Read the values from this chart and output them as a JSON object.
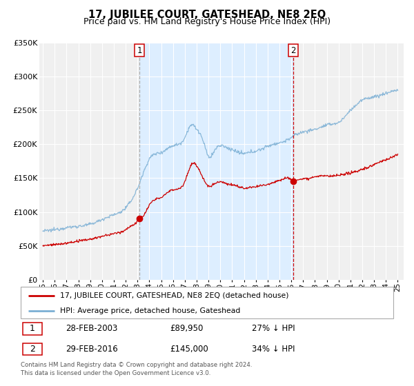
{
  "title": "17, JUBILEE COURT, GATESHEAD, NE8 2EQ",
  "subtitle": "Price paid vs. HM Land Registry's House Price Index (HPI)",
  "ylim": [
    0,
    350000
  ],
  "yticks": [
    0,
    50000,
    100000,
    150000,
    200000,
    250000,
    300000,
    350000
  ],
  "ytick_labels": [
    "£0",
    "£50K",
    "£100K",
    "£150K",
    "£200K",
    "£250K",
    "£300K",
    "£350K"
  ],
  "xlim_start": 1994.7,
  "xlim_end": 2025.5,
  "xtick_years": [
    1995,
    1996,
    1997,
    1998,
    1999,
    2000,
    2001,
    2002,
    2003,
    2004,
    2005,
    2006,
    2007,
    2008,
    2009,
    2010,
    2011,
    2012,
    2013,
    2014,
    2015,
    2016,
    2017,
    2018,
    2019,
    2020,
    2021,
    2022,
    2023,
    2024,
    2025
  ],
  "hpi_color": "#7bafd4",
  "price_color": "#cc0000",
  "vline1_color": "#aaaaaa",
  "vline1_style": "--",
  "vline2_color": "#cc0000",
  "vline2_style": "--",
  "shade_color": "#ddeeff",
  "plot_bg_color": "#f0f0f0",
  "grid_color": "#ffffff",
  "fig_bg_color": "#ffffff",
  "purchase1_x": 2003.17,
  "purchase1_y": 89950,
  "purchase1_label": "1",
  "purchase2_x": 2016.17,
  "purchase2_y": 145000,
  "purchase2_label": "2",
  "legend_label_price": "17, JUBILEE COURT, GATESHEAD, NE8 2EQ (detached house)",
  "legend_label_hpi": "HPI: Average price, detached house, Gateshead",
  "annotation1_date": "28-FEB-2003",
  "annotation1_price": "£89,950",
  "annotation1_hpi": "27% ↓ HPI",
  "annotation2_date": "29-FEB-2016",
  "annotation2_price": "£145,000",
  "annotation2_hpi": "34% ↓ HPI",
  "footer_line1": "Contains HM Land Registry data © Crown copyright and database right 2024.",
  "footer_line2": "This data is licensed under the Open Government Licence v3.0.",
  "title_fontsize": 10.5,
  "subtitle_fontsize": 9,
  "hpi_anchors_x": [
    1995.0,
    1996.0,
    1997.0,
    1998.0,
    1999.0,
    2000.0,
    2001.0,
    2002.0,
    2002.5,
    2003.0,
    2003.5,
    2004.0,
    2005.0,
    2006.0,
    2007.0,
    2007.5,
    2008.0,
    2008.3,
    2008.7,
    2009.0,
    2009.5,
    2010.0,
    2010.5,
    2011.0,
    2011.5,
    2012.0,
    2012.5,
    2013.0,
    2013.5,
    2014.0,
    2014.5,
    2015.0,
    2015.5,
    2016.0,
    2016.5,
    2017.0,
    2017.5,
    2018.0,
    2018.5,
    2019.0,
    2019.5,
    2020.0,
    2020.5,
    2021.0,
    2021.5,
    2022.0,
    2022.5,
    2023.0,
    2023.5,
    2024.0,
    2024.5,
    2025.0
  ],
  "hpi_anchors_y": [
    72000,
    74000,
    77000,
    79000,
    82000,
    89000,
    96000,
    106000,
    118000,
    135000,
    158000,
    178000,
    188000,
    198000,
    210000,
    228000,
    222000,
    215000,
    196000,
    182000,
    190000,
    198000,
    195000,
    192000,
    188000,
    186000,
    188000,
    190000,
    193000,
    197000,
    200000,
    202000,
    205000,
    210000,
    215000,
    218000,
    220000,
    222000,
    225000,
    228000,
    230000,
    232000,
    240000,
    250000,
    258000,
    265000,
    268000,
    270000,
    272000,
    275000,
    278000,
    280000
  ],
  "price_anchors_x": [
    1995.0,
    1996.0,
    1997.0,
    1998.0,
    1999.0,
    2000.0,
    2001.0,
    2002.0,
    2002.5,
    2003.0,
    2003.17,
    2003.5,
    2004.0,
    2005.0,
    2006.0,
    2007.0,
    2007.5,
    2007.8,
    2008.2,
    2008.6,
    2009.0,
    2009.5,
    2010.0,
    2010.5,
    2011.0,
    2011.5,
    2012.0,
    2012.5,
    2013.0,
    2013.5,
    2014.0,
    2014.5,
    2015.0,
    2015.5,
    2016.0,
    2016.17,
    2016.5,
    2017.0,
    2017.5,
    2018.0,
    2018.5,
    2019.0,
    2019.5,
    2020.0,
    2020.5,
    2021.0,
    2021.5,
    2022.0,
    2022.5,
    2023.0,
    2023.5,
    2024.0,
    2024.5,
    2025.0
  ],
  "price_anchors_y": [
    50000,
    52000,
    54000,
    57000,
    60000,
    64000,
    68000,
    74000,
    80000,
    86000,
    89950,
    95000,
    110000,
    122000,
    133000,
    145000,
    168000,
    172000,
    162000,
    148000,
    138000,
    142000,
    145000,
    142000,
    140000,
    138000,
    135000,
    136000,
    137000,
    139000,
    141000,
    144000,
    147000,
    150000,
    148000,
    145000,
    147000,
    149000,
    150000,
    152000,
    153000,
    153000,
    153000,
    154000,
    155000,
    158000,
    160000,
    163000,
    166000,
    170000,
    174000,
    177000,
    181000,
    185000
  ]
}
